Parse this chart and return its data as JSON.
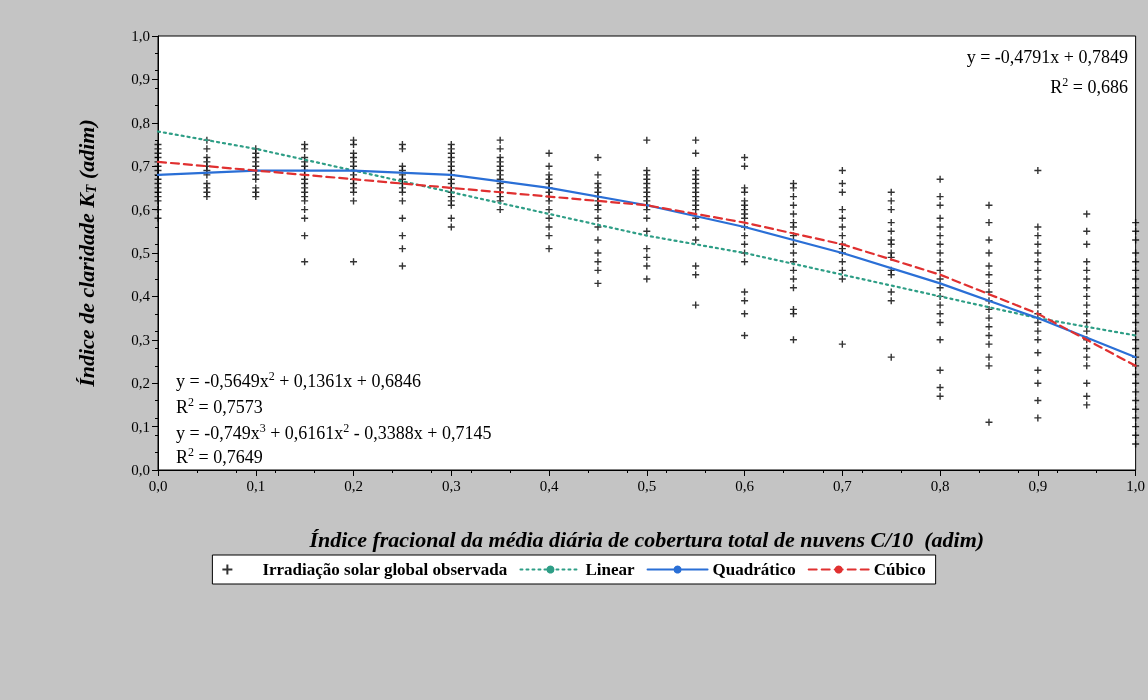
{
  "chart_data": {
    "type": "scatter",
    "xlabel": "Índice fracional da média diária de cobertura total de nuvens C/10  (adim)",
    "ylabel": "Índice de claridade K$_{T}$ (adim)",
    "xlim": [
      0,
      1
    ],
    "ylim": [
      0,
      1
    ],
    "xticks": [
      {
        "value": 0,
        "label": "0,0"
      },
      {
        "value": 0.1,
        "label": "0,1"
      },
      {
        "value": 0.2,
        "label": "0,2"
      },
      {
        "value": 0.3,
        "label": "0,3"
      },
      {
        "value": 0.4,
        "label": "0,4"
      },
      {
        "value": 0.5,
        "label": "0,5"
      },
      {
        "value": 0.6,
        "label": "0,6"
      },
      {
        "value": 0.7,
        "label": "0,7"
      },
      {
        "value": 0.8,
        "label": "0,8"
      },
      {
        "value": 0.9,
        "label": "0,9"
      },
      {
        "value": 1,
        "label": "1,0"
      }
    ],
    "yticks": [
      {
        "value": 0,
        "label": "0,0"
      },
      {
        "value": 0.1,
        "label": "0,1"
      },
      {
        "value": 0.2,
        "label": "0,2"
      },
      {
        "value": 0.3,
        "label": "0,3"
      },
      {
        "value": 0.4,
        "label": "0,4"
      },
      {
        "value": 0.5,
        "label": "0,5"
      },
      {
        "value": 0.6,
        "label": "0,6"
      },
      {
        "value": 0.7,
        "label": "0,7"
      },
      {
        "value": 0.8,
        "label": "0,8"
      },
      {
        "value": 0.9,
        "label": "0,9"
      },
      {
        "value": 1,
        "label": "1,0"
      }
    ],
    "grid": false,
    "legend": "bottom",
    "annotations": [
      "y = -0,4791x + 0,7849",
      "R$^{2}$ = 0,686",
      "y = -0,5649x$^{2}$ + 0,1361x + 0,6846",
      "R$^{2}$ = 0,7573",
      "y = -0,749x$^{3}$ + 0,6161x$^{2}$ - 0,3388x + 0,7145",
      "R$^{2}$ = 0,7649"
    ],
    "series": [
      {
        "name": "Irradiação solar global observada",
        "marker": "cross",
        "color": "#000000",
        "x": [
          0,
          0,
          0,
          0,
          0,
          0,
          0,
          0,
          0,
          0,
          0,
          0,
          0,
          0,
          0,
          0,
          0.05,
          0.05,
          0.05,
          0.05,
          0.05,
          0.05,
          0.05,
          0.05,
          0.05,
          0.05,
          0.05,
          0.1,
          0.1,
          0.1,
          0.1,
          0.1,
          0.1,
          0.1,
          0.1,
          0.1,
          0.1,
          0.1,
          0.15,
          0.15,
          0.15,
          0.15,
          0.15,
          0.15,
          0.15,
          0.15,
          0.15,
          0.15,
          0.15,
          0.15,
          0.15,
          0.15,
          0.15,
          0.15,
          0.15,
          0.2,
          0.2,
          0.2,
          0.2,
          0.2,
          0.2,
          0.2,
          0.2,
          0.2,
          0.2,
          0.2,
          0.2,
          0.2,
          0.2,
          0.25,
          0.25,
          0.25,
          0.25,
          0.25,
          0.25,
          0.25,
          0.25,
          0.25,
          0.25,
          0.25,
          0.25,
          0.25,
          0.25,
          0.3,
          0.3,
          0.3,
          0.3,
          0.3,
          0.3,
          0.3,
          0.3,
          0.3,
          0.3,
          0.3,
          0.3,
          0.3,
          0.3,
          0.3,
          0.3,
          0.3,
          0.35,
          0.35,
          0.35,
          0.35,
          0.35,
          0.35,
          0.35,
          0.35,
          0.35,
          0.35,
          0.35,
          0.35,
          0.35,
          0.35,
          0.4,
          0.4,
          0.4,
          0.4,
          0.4,
          0.4,
          0.4,
          0.4,
          0.4,
          0.4,
          0.4,
          0.4,
          0.4,
          0.4,
          0.45,
          0.45,
          0.45,
          0.45,
          0.45,
          0.45,
          0.45,
          0.45,
          0.45,
          0.45,
          0.45,
          0.45,
          0.45,
          0.45,
          0.45,
          0.45,
          0.5,
          0.5,
          0.5,
          0.5,
          0.5,
          0.5,
          0.5,
          0.5,
          0.5,
          0.5,
          0.5,
          0.5,
          0.5,
          0.5,
          0.5,
          0.5,
          0.5,
          0.55,
          0.55,
          0.55,
          0.55,
          0.55,
          0.55,
          0.55,
          0.55,
          0.55,
          0.55,
          0.55,
          0.55,
          0.55,
          0.55,
          0.55,
          0.55,
          0.55,
          0.55,
          0.6,
          0.6,
          0.6,
          0.6,
          0.6,
          0.6,
          0.6,
          0.6,
          0.6,
          0.6,
          0.6,
          0.6,
          0.6,
          0.6,
          0.6,
          0.6,
          0.6,
          0.6,
          0.65,
          0.65,
          0.65,
          0.65,
          0.65,
          0.65,
          0.65,
          0.65,
          0.65,
          0.65,
          0.65,
          0.65,
          0.65,
          0.65,
          0.65,
          0.65,
          0.65,
          0.7,
          0.7,
          0.7,
          0.7,
          0.7,
          0.7,
          0.7,
          0.7,
          0.7,
          0.7,
          0.7,
          0.7,
          0.7,
          0.7,
          0.75,
          0.75,
          0.75,
          0.75,
          0.75,
          0.75,
          0.75,
          0.75,
          0.75,
          0.75,
          0.75,
          0.75,
          0.75,
          0.75,
          0.8,
          0.8,
          0.8,
          0.8,
          0.8,
          0.8,
          0.8,
          0.8,
          0.8,
          0.8,
          0.8,
          0.8,
          0.8,
          0.8,
          0.8,
          0.8,
          0.8,
          0.8,
          0.8,
          0.8,
          0.85,
          0.85,
          0.85,
          0.85,
          0.85,
          0.85,
          0.85,
          0.85,
          0.85,
          0.85,
          0.85,
          0.85,
          0.85,
          0.85,
          0.85,
          0.85,
          0.85,
          0.9,
          0.9,
          0.9,
          0.9,
          0.9,
          0.9,
          0.9,
          0.9,
          0.9,
          0.9,
          0.9,
          0.9,
          0.9,
          0.9,
          0.9,
          0.9,
          0.9,
          0.9,
          0.9,
          0.9,
          0.95,
          0.95,
          0.95,
          0.95,
          0.95,
          0.95,
          0.95,
          0.95,
          0.95,
          0.95,
          0.95,
          0.95,
          0.95,
          0.95,
          0.95,
          0.95,
          0.95,
          0.95,
          0.95,
          1,
          1,
          1,
          1,
          1,
          1,
          1,
          1,
          1,
          1,
          1,
          1,
          1,
          1,
          1,
          1,
          1,
          1,
          1,
          1,
          1,
          1,
          1,
          1,
          1,
          1
        ],
        "values": [
          0.75,
          0.74,
          0.73,
          0.72,
          0.71,
          0.7,
          0.69,
          0.68,
          0.67,
          0.66,
          0.65,
          0.64,
          0.63,
          0.62,
          0.6,
          0.58,
          0.76,
          0.74,
          0.72,
          0.71,
          0.7,
          0.69,
          0.68,
          0.66,
          0.65,
          0.64,
          0.63,
          0.74,
          0.73,
          0.72,
          0.71,
          0.7,
          0.69,
          0.68,
          0.67,
          0.65,
          0.64,
          0.63,
          0.75,
          0.74,
          0.72,
          0.71,
          0.7,
          0.69,
          0.68,
          0.67,
          0.66,
          0.65,
          0.64,
          0.63,
          0.62,
          0.6,
          0.58,
          0.54,
          0.48,
          0.76,
          0.75,
          0.73,
          0.72,
          0.71,
          0.7,
          0.69,
          0.68,
          0.67,
          0.66,
          0.65,
          0.64,
          0.62,
          0.48,
          0.75,
          0.74,
          0.7,
          0.69,
          0.68,
          0.67,
          0.66,
          0.65,
          0.64,
          0.62,
          0.58,
          0.54,
          0.51,
          0.47,
          0.75,
          0.74,
          0.73,
          0.72,
          0.71,
          0.7,
          0.69,
          0.68,
          0.67,
          0.66,
          0.65,
          0.64,
          0.63,
          0.62,
          0.61,
          0.58,
          0.56,
          0.76,
          0.74,
          0.72,
          0.71,
          0.7,
          0.69,
          0.68,
          0.67,
          0.66,
          0.65,
          0.64,
          0.63,
          0.62,
          0.6,
          0.73,
          0.7,
          0.68,
          0.67,
          0.66,
          0.65,
          0.64,
          0.63,
          0.62,
          0.6,
          0.58,
          0.56,
          0.54,
          0.51,
          0.72,
          0.68,
          0.66,
          0.65,
          0.64,
          0.63,
          0.62,
          0.61,
          0.6,
          0.58,
          0.56,
          0.53,
          0.5,
          0.48,
          0.46,
          0.43,
          0.76,
          0.69,
          0.68,
          0.67,
          0.66,
          0.65,
          0.64,
          0.63,
          0.62,
          0.61,
          0.6,
          0.58,
          0.55,
          0.51,
          0.49,
          0.47,
          0.44,
          0.76,
          0.73,
          0.69,
          0.68,
          0.67,
          0.66,
          0.65,
          0.64,
          0.63,
          0.62,
          0.61,
          0.6,
          0.58,
          0.56,
          0.53,
          0.47,
          0.45,
          0.38,
          0.72,
          0.7,
          0.65,
          0.64,
          0.62,
          0.61,
          0.6,
          0.59,
          0.58,
          0.56,
          0.54,
          0.52,
          0.5,
          0.48,
          0.41,
          0.39,
          0.36,
          0.31,
          0.66,
          0.65,
          0.63,
          0.61,
          0.59,
          0.57,
          0.56,
          0.54,
          0.52,
          0.5,
          0.48,
          0.46,
          0.44,
          0.42,
          0.37,
          0.36,
          0.3,
          0.69,
          0.66,
          0.64,
          0.6,
          0.58,
          0.56,
          0.54,
          0.52,
          0.51,
          0.5,
          0.48,
          0.46,
          0.44,
          0.29,
          0.64,
          0.62,
          0.6,
          0.57,
          0.55,
          0.53,
          0.52,
          0.5,
          0.49,
          0.46,
          0.45,
          0.41,
          0.39,
          0.26,
          0.67,
          0.63,
          0.61,
          0.58,
          0.56,
          0.54,
          0.52,
          0.5,
          0.48,
          0.46,
          0.44,
          0.42,
          0.4,
          0.38,
          0.36,
          0.34,
          0.3,
          0.23,
          0.19,
          0.17,
          0.61,
          0.57,
          0.53,
          0.5,
          0.47,
          0.45,
          0.43,
          0.41,
          0.39,
          0.37,
          0.35,
          0.33,
          0.31,
          0.29,
          0.26,
          0.24,
          0.11,
          0.69,
          0.56,
          0.54,
          0.52,
          0.5,
          0.48,
          0.46,
          0.44,
          0.42,
          0.4,
          0.38,
          0.36,
          0.34,
          0.32,
          0.3,
          0.27,
          0.23,
          0.2,
          0.16,
          0.12,
          0.59,
          0.55,
          0.52,
          0.48,
          0.46,
          0.44,
          0.42,
          0.4,
          0.38,
          0.36,
          0.34,
          0.32,
          0.3,
          0.28,
          0.26,
          0.24,
          0.2,
          0.17,
          0.15,
          0.57,
          0.55,
          0.53,
          0.5,
          0.48,
          0.46,
          0.44,
          0.42,
          0.4,
          0.38,
          0.36,
          0.34,
          0.32,
          0.3,
          0.28,
          0.26,
          0.24,
          0.22,
          0.2,
          0.18,
          0.16,
          0.14,
          0.12,
          0.1,
          0.08,
          0.06
        ]
      },
      {
        "name": "Linear",
        "type": "line",
        "marker": "none",
        "line_style": "dotted",
        "color": "#2e9e86",
        "x": [
          0,
          0.1,
          0.2,
          0.3,
          0.4,
          0.5,
          0.6,
          0.7,
          0.8,
          0.9,
          1
        ],
        "values": [
          0.78,
          0.74,
          0.69,
          0.64,
          0.59,
          0.54,
          0.5,
          0.45,
          0.4,
          0.35,
          0.31
        ]
      },
      {
        "name": "Quadrático",
        "type": "line",
        "marker": "none",
        "line_style": "solid",
        "color": "#2a6fd6",
        "x": [
          0,
          0.1,
          0.2,
          0.3,
          0.4,
          0.5,
          0.6,
          0.7,
          0.8,
          0.9,
          1
        ],
        "values": [
          0.68,
          0.69,
          0.69,
          0.68,
          0.65,
          0.61,
          0.56,
          0.5,
          0.43,
          0.35,
          0.26
        ]
      },
      {
        "name": "Cúbico",
        "type": "line",
        "marker": "none",
        "line_style": "dashed",
        "color": "#e03030",
        "x": [
          0,
          0.1,
          0.2,
          0.3,
          0.4,
          0.5,
          0.6,
          0.7,
          0.8,
          0.9,
          1
        ],
        "values": [
          0.71,
          0.69,
          0.67,
          0.65,
          0.63,
          0.61,
          0.57,
          0.52,
          0.45,
          0.36,
          0.24
        ]
      }
    ]
  }
}
